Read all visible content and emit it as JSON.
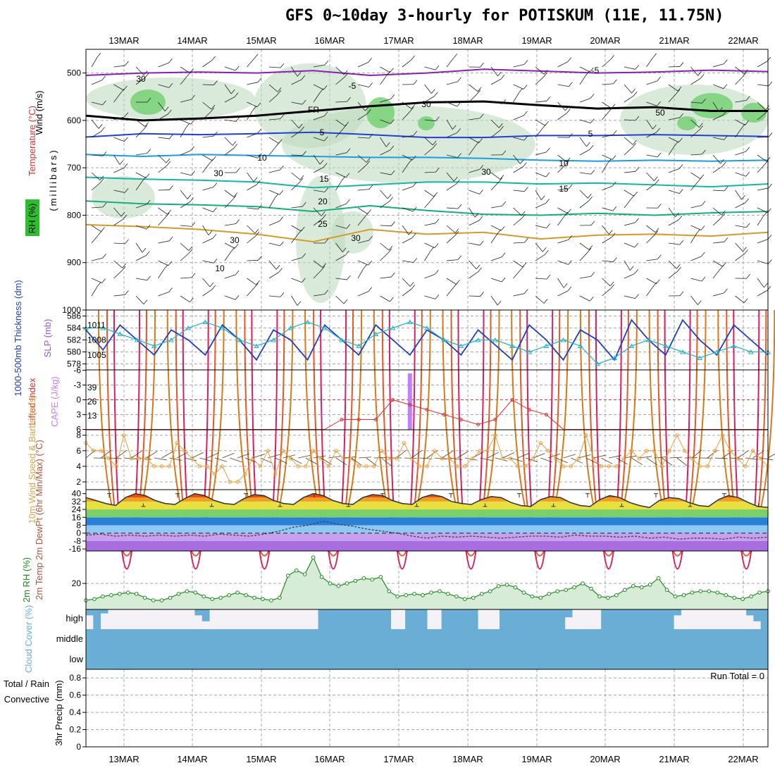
{
  "title": "GFS 0~10day 3-hourly for POTISKUM (11E, 11.75N)",
  "dates": [
    "13MAR",
    "14MAR",
    "15MAR",
    "16MAR",
    "17MAR",
    "18MAR",
    "19MAR",
    "20MAR",
    "21MAR",
    "22MAR"
  ],
  "colors": {
    "grid": "#a8a8a8",
    "frame": "#000000",
    "rh_fill": "#bcd9bc",
    "rh_dark": "#6fcf6f",
    "slp": "#1f3fbf",
    "thickness": "#22b5c8",
    "cape": "#bf7fff",
    "lifted": "#e03030",
    "wind10": "#e8a040",
    "barbs": "#5a3a1a",
    "cloud": "#6aaed6",
    "cloud_bg": "#f4f1f7",
    "rh2m": "#228b22",
    "rh2m_fill": "#d6ecd6"
  },
  "chart_data": [
    {
      "panel": "upper-air",
      "type": "heatmap",
      "ylabel_parts": [
        "Wind (m/s)",
        "Temperature (°C)",
        "RH (%)",
        "(millibars)"
      ],
      "ylim": [
        1000,
        450
      ],
      "yticks": [
        500,
        600,
        700,
        800,
        900,
        1000
      ],
      "contour_labels": {
        "temperature": [
          "-5",
          "-5",
          "FR",
          "5",
          "5",
          "10",
          "10",
          "15",
          "15",
          "20",
          "25",
          "30"
        ],
        "rh": [
          "30",
          "30",
          "30",
          "30",
          "30",
          "50",
          "10"
        ]
      },
      "isotherms": [
        {
          "name": "-5",
          "pressure": [
            505,
            500,
            498,
            500,
            495,
            505,
            500,
            492,
            496,
            500,
            498,
            494,
            497
          ]
        },
        {
          "name": "FR",
          "pressure": [
            590,
            600,
            596,
            590,
            580,
            570,
            562,
            560,
            568,
            575,
            572,
            580,
            580
          ]
        },
        {
          "name": "5",
          "pressure": [
            635,
            628,
            630,
            628,
            625,
            630,
            636,
            636,
            632,
            632,
            630,
            632,
            634
          ]
        },
        {
          "name": "10",
          "pressure": [
            672,
            676,
            672,
            674,
            676,
            678,
            678,
            680,
            684,
            686,
            684,
            686,
            684
          ]
        },
        {
          "name": "15",
          "pressure": [
            720,
            724,
            726,
            730,
            742,
            736,
            730,
            730,
            734,
            732,
            736,
            740,
            734
          ]
        },
        {
          "name": "20",
          "pressure": [
            770,
            776,
            778,
            782,
            792,
            780,
            790,
            798,
            800,
            796,
            800,
            795,
            792
          ]
        },
        {
          "name": "25",
          "pressure": [
            820,
            824,
            830,
            840,
            856,
            830,
            840,
            836,
            850,
            842,
            840,
            844,
            836
          ]
        }
      ]
    },
    {
      "panel": "slp-thickness",
      "type": "line",
      "ylabel_left": "1000-500mb Thickness (dm)",
      "ylabel_right": "SLP (mb)",
      "yticks_left": [
        578,
        580,
        582,
        584,
        586
      ],
      "yticks_right": [
        1005,
        1008,
        1011
      ],
      "series": [
        {
          "name": "SLP (mb)",
          "values": [
            1010,
            1006,
            1011,
            1008,
            1005,
            1010,
            1008,
            1005,
            1011,
            1008,
            1004,
            1010,
            1008,
            1004,
            1011,
            1008,
            1005,
            1011,
            1008,
            1005,
            1010,
            1008,
            1005,
            1010,
            1007,
            1004,
            1011,
            1008,
            1004,
            1010,
            1008,
            1004,
            1012,
            1008,
            1005,
            1012,
            1008,
            1005,
            1011,
            1008,
            1005
          ]
        },
        {
          "name": "1000-500mb Thickness (dm)",
          "values": [
            584,
            584,
            583,
            582,
            581,
            582,
            584,
            585,
            584,
            582,
            581,
            582,
            584,
            585,
            584,
            582,
            581,
            583,
            584,
            585,
            584,
            582,
            581,
            582,
            582,
            581,
            580,
            581,
            582,
            581,
            578,
            579,
            581,
            582,
            581,
            580,
            579,
            580,
            581,
            580,
            580
          ]
        }
      ]
    },
    {
      "panel": "cape-lifted-index",
      "type": "line",
      "ylabel_left": "Lifted Index",
      "ylabel_right": "CAPE (J/kg)",
      "yticks_left": [
        "-6",
        "-3",
        "0",
        "3",
        "6"
      ],
      "yticks_right": [
        13,
        26,
        39
      ],
      "series": [
        {
          "name": "CAPE (J/kg)",
          "values": [
            0,
            0,
            0,
            0,
            0,
            0,
            0,
            0,
            0,
            0,
            0,
            0,
            0,
            0,
            0,
            0,
            0,
            0,
            0,
            52,
            0,
            0,
            0,
            0,
            0,
            0,
            0,
            0,
            0,
            0,
            0,
            0,
            0,
            0,
            0,
            0,
            0,
            0,
            0,
            0,
            0
          ]
        },
        {
          "name": "Lifted Index",
          "values": [
            6,
            6,
            6,
            6,
            6,
            6,
            6,
            6,
            6,
            6,
            6,
            6,
            6,
            6,
            6,
            4,
            4,
            4,
            0,
            1,
            2,
            3,
            4,
            5,
            4,
            0,
            2,
            3,
            6,
            6,
            6,
            6,
            6,
            6,
            6,
            6,
            6,
            6,
            6,
            6,
            6
          ]
        }
      ]
    },
    {
      "panel": "wind10m",
      "type": "line",
      "ylabel": "10m Wind Speed & Barbs (m/s)",
      "yticks": [
        2,
        4,
        6,
        8
      ],
      "series": [
        {
          "name": "10m Wind Speed",
          "values": [
            7,
            6,
            6,
            5,
            4,
            8,
            5,
            5,
            5,
            4,
            4,
            4,
            7,
            6,
            5,
            4,
            4,
            3,
            4,
            2,
            2,
            3,
            5,
            4,
            6,
            3,
            6,
            5,
            4,
            4,
            6,
            5,
            4,
            6,
            5,
            5,
            4,
            4,
            4,
            6,
            5,
            5,
            7,
            5,
            4,
            4,
            6,
            5,
            5,
            4,
            4,
            5,
            6,
            6,
            8,
            5,
            5,
            4,
            4,
            5,
            7,
            6,
            5,
            4,
            4,
            5,
            8,
            5,
            4,
            4,
            4,
            5,
            6,
            5,
            6,
            6,
            4,
            6,
            8,
            6,
            5,
            4,
            4,
            6,
            8,
            6,
            5,
            4,
            6,
            5,
            4
          ]
        }
      ]
    },
    {
      "panel": "temp-dewpoint",
      "type": "area",
      "ylabel": "2m Temp 2m DewPt (6hr Min/Max) (°C)",
      "yticks": [
        "-16",
        "-8",
        "0",
        "8",
        "16",
        "24",
        "32",
        "40"
      ],
      "series": [
        {
          "name": "2m Temp",
          "values": [
            36,
            33,
            30,
            28,
            36,
            40,
            38,
            33,
            30,
            29,
            35,
            40,
            38,
            33,
            30,
            29,
            35,
            39,
            38,
            33,
            30,
            29,
            36,
            40,
            38,
            33,
            30,
            29,
            36,
            39,
            38,
            33,
            30,
            29,
            36,
            39,
            37,
            32,
            30,
            29,
            34,
            37,
            36,
            31,
            28,
            27,
            34,
            37,
            36,
            31,
            28,
            27,
            34,
            38,
            36,
            31,
            28,
            26,
            33,
            36,
            35,
            31,
            28,
            27,
            34,
            38,
            36,
            31,
            27,
            26
          ]
        },
        {
          "name": "2m DewPt",
          "values": [
            -2,
            -1,
            -3,
            -2,
            -3,
            -2,
            -3,
            -2,
            -3,
            -1,
            -2,
            -3,
            -1,
            2,
            6,
            8,
            12,
            9,
            7,
            4,
            2,
            0,
            -3,
            -5,
            -3,
            -4,
            -3,
            -4,
            -5,
            -4,
            -3,
            -3,
            -4,
            -2,
            -3,
            -3,
            -4,
            -3,
            -5,
            -4,
            -6,
            -5,
            -5,
            -6,
            -4,
            -5,
            -4
          ]
        }
      ]
    },
    {
      "panel": "rh2m",
      "type": "area",
      "ylabel": "2m RH (%)",
      "yticks": [
        20
      ],
      "series": [
        {
          "name": "2m RH",
          "values": [
            7,
            8,
            10,
            11,
            12,
            13,
            12,
            9,
            7,
            7,
            9,
            12,
            14,
            13,
            10,
            8,
            9,
            11,
            13,
            11,
            9,
            8,
            7,
            9,
            26,
            30,
            27,
            40,
            25,
            20,
            18,
            20,
            22,
            24,
            23,
            25,
            14,
            10,
            11,
            12,
            11,
            13,
            14,
            12,
            10,
            8,
            9,
            12,
            14,
            18,
            19,
            17,
            13,
            10,
            9,
            12,
            14,
            15,
            17,
            20,
            16,
            10,
            9,
            11,
            15,
            18,
            17,
            19,
            24,
            15,
            10,
            11,
            13,
            14,
            14,
            13,
            11,
            9,
            8,
            10,
            13,
            14
          ]
        }
      ]
    },
    {
      "panel": "cloud-cover",
      "type": "bar",
      "ylabel": "Cloud Cover (%)",
      "yticks": [
        "high",
        "middle",
        "low"
      ],
      "series": [
        {
          "name": "high",
          "values": [
            30,
            100,
            20,
            0,
            0,
            0,
            0,
            0,
            0,
            0,
            0,
            0,
            0,
            0,
            0,
            30,
            60,
            0,
            0,
            0,
            0,
            0,
            0,
            0,
            0,
            0,
            0,
            0,
            0,
            0,
            0,
            0,
            100,
            100,
            100,
            100,
            100,
            100,
            100,
            100,
            100,
            100,
            0,
            0,
            100,
            100,
            100,
            0,
            0,
            100,
            100,
            100,
            100,
            100,
            0,
            0,
            0,
            100,
            100,
            100,
            100,
            100,
            100,
            100,
            100,
            100,
            40,
            0,
            0,
            0,
            0,
            100,
            100,
            100,
            100,
            100,
            100,
            100,
            100,
            100,
            100,
            30,
            0,
            0,
            0,
            0,
            0,
            0,
            0,
            0,
            0,
            30,
            60,
            100
          ]
        },
        {
          "name": "middle",
          "values": [
            100,
            100,
            100,
            100,
            100,
            100,
            100,
            100,
            100,
            100,
            100,
            100,
            100,
            100,
            100,
            100,
            100,
            100,
            100,
            100,
            100,
            100,
            100,
            100,
            100,
            100,
            100,
            100,
            100,
            100,
            100,
            100,
            100,
            100,
            100,
            100,
            100,
            100,
            100,
            100,
            100,
            100,
            100,
            100,
            100,
            100,
            100,
            100,
            100,
            100,
            100,
            100,
            100,
            100,
            100,
            100,
            100,
            100,
            100,
            100,
            100,
            100,
            100,
            100,
            100,
            100,
            100,
            100,
            100,
            100,
            100,
            100,
            100,
            100,
            100,
            100,
            100,
            100,
            100,
            100,
            100,
            100,
            100,
            100,
            100,
            100,
            100,
            100,
            100,
            100,
            100,
            100,
            100,
            100
          ]
        }
      ]
    },
    {
      "panel": "precip",
      "type": "bar",
      "ylabel": "3hr Precip (mm)",
      "legend": [
        "Total / Rain",
        "Convective"
      ],
      "yticks": [
        "0",
        "0.2",
        "0.4",
        "0.6",
        "0.8"
      ],
      "ylim": [
        0,
        0.9
      ],
      "annotation": "Run Total = 0",
      "series": [
        {
          "name": "Total / Rain",
          "values": [
            0,
            0,
            0,
            0,
            0,
            0,
            0,
            0,
            0,
            0,
            0,
            0,
            0,
            0,
            0,
            0,
            0,
            0,
            0,
            0,
            0,
            0,
            0,
            0,
            0,
            0,
            0,
            0,
            0,
            0,
            0,
            0,
            0,
            0,
            0,
            0,
            0,
            0,
            0,
            0
          ]
        },
        {
          "name": "Convective",
          "values": [
            0,
            0,
            0,
            0,
            0,
            0,
            0,
            0,
            0,
            0,
            0,
            0,
            0,
            0,
            0,
            0,
            0,
            0,
            0,
            0,
            0,
            0,
            0,
            0,
            0,
            0,
            0,
            0,
            0,
            0,
            0,
            0,
            0,
            0,
            0,
            0,
            0,
            0,
            0,
            0
          ]
        }
      ]
    }
  ]
}
